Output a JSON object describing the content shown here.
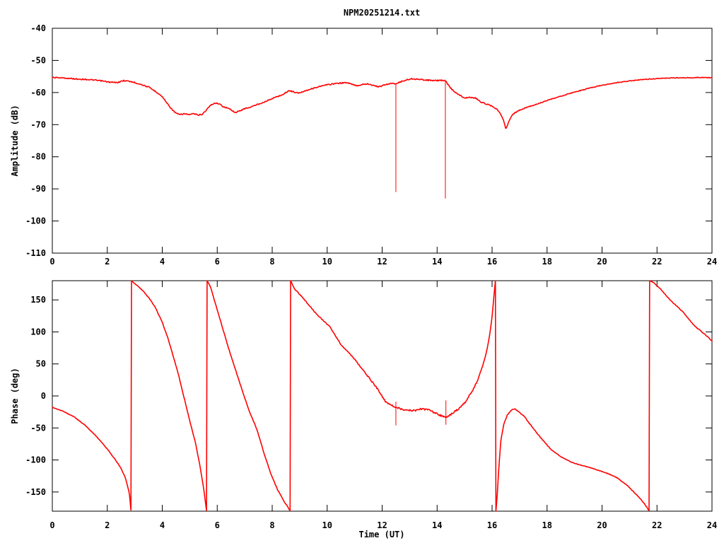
{
  "title": "NPM20251214.txt",
  "colors": {
    "trace": "#ff0000",
    "axis": "#000000",
    "background": "#ffffff"
  },
  "chart_data": [
    {
      "type": "line",
      "title": "NPM20251214.txt",
      "ylabel": "Amplitude (dB)",
      "xlabel": "",
      "xlim": [
        0,
        24
      ],
      "ylim": [
        -110,
        -40
      ],
      "grid": false,
      "legend": "none",
      "xticks": [
        0,
        2,
        4,
        6,
        8,
        10,
        12,
        14,
        16,
        18,
        20,
        22,
        24
      ],
      "xtick_labels": [
        "0",
        "2",
        "4",
        "6",
        "8",
        "10",
        "12",
        "14",
        "16",
        "18",
        "20",
        "22",
        "24"
      ],
      "yticks": [
        -110,
        -100,
        -90,
        -80,
        -70,
        -60,
        -50,
        -40
      ],
      "ytick_labels": [
        "-110",
        "-100",
        "-90",
        "-80",
        "-70",
        "-60",
        "-50",
        "-40"
      ],
      "series": [
        {
          "name": "amplitude",
          "color": "#ff0000",
          "points": [
            [
              0,
              -55.3
            ],
            [
              0.3,
              -55.4
            ],
            [
              0.6,
              -55.6
            ],
            [
              0.9,
              -55.8
            ],
            [
              1.2,
              -55.9
            ],
            [
              1.5,
              -56.1
            ],
            [
              1.8,
              -56.4
            ],
            [
              2.1,
              -56.8
            ],
            [
              2.35,
              -56.9
            ],
            [
              2.6,
              -56.3
            ],
            [
              2.8,
              -56.5
            ],
            [
              3.0,
              -56.9
            ],
            [
              3.2,
              -57.4
            ],
            [
              3.5,
              -58.3
            ],
            [
              3.8,
              -59.9
            ],
            [
              4.0,
              -61.3
            ],
            [
              4.2,
              -63.6
            ],
            [
              4.35,
              -65.2
            ],
            [
              4.5,
              -66.5
            ],
            [
              4.65,
              -66.9
            ],
            [
              4.8,
              -66.6
            ],
            [
              5.0,
              -66.9
            ],
            [
              5.15,
              -66.6
            ],
            [
              5.3,
              -67.0
            ],
            [
              5.45,
              -66.8
            ],
            [
              5.6,
              -65.5
            ],
            [
              5.75,
              -64.0
            ],
            [
              5.9,
              -63.3
            ],
            [
              6.05,
              -63.4
            ],
            [
              6.2,
              -64.3
            ],
            [
              6.35,
              -64.8
            ],
            [
              6.5,
              -65.3
            ],
            [
              6.65,
              -66.3
            ],
            [
              6.8,
              -65.8
            ],
            [
              7.0,
              -65.0
            ],
            [
              7.2,
              -64.6
            ],
            [
              7.4,
              -63.9
            ],
            [
              7.6,
              -63.3
            ],
            [
              7.8,
              -62.6
            ],
            [
              8.0,
              -61.9
            ],
            [
              8.2,
              -61.2
            ],
            [
              8.4,
              -60.6
            ],
            [
              8.6,
              -59.4
            ],
            [
              8.75,
              -59.7
            ],
            [
              8.95,
              -60.2
            ],
            [
              9.15,
              -59.6
            ],
            [
              9.4,
              -58.9
            ],
            [
              9.7,
              -58.2
            ],
            [
              10.0,
              -57.6
            ],
            [
              10.3,
              -57.2
            ],
            [
              10.55,
              -57.0
            ],
            [
              10.75,
              -57.0
            ],
            [
              10.95,
              -57.6
            ],
            [
              11.1,
              -57.9
            ],
            [
              11.3,
              -57.4
            ],
            [
              11.5,
              -57.3
            ],
            [
              11.7,
              -57.9
            ],
            [
              11.9,
              -58.2
            ],
            [
              12.1,
              -57.6
            ],
            [
              12.3,
              -57.2
            ],
            [
              12.5,
              -57.2
            ],
            [
              12.7,
              -56.6
            ],
            [
              12.9,
              -56.0
            ],
            [
              13.1,
              -55.7
            ],
            [
              13.3,
              -55.9
            ],
            [
              13.6,
              -56.1
            ],
            [
              13.9,
              -56.3
            ],
            [
              14.1,
              -56.2
            ],
            [
              14.3,
              -56.3
            ],
            [
              14.45,
              -58.2
            ],
            [
              14.6,
              -59.6
            ],
            [
              14.8,
              -60.7
            ],
            [
              15.0,
              -61.7
            ],
            [
              15.2,
              -61.5
            ],
            [
              15.4,
              -61.7
            ],
            [
              15.6,
              -63.0
            ],
            [
              15.8,
              -63.6
            ],
            [
              16.0,
              -64.2
            ],
            [
              16.15,
              -65.0
            ],
            [
              16.3,
              -66.5
            ],
            [
              16.42,
              -68.6
            ],
            [
              16.5,
              -71.4
            ],
            [
              16.58,
              -69.7
            ],
            [
              16.7,
              -67.3
            ],
            [
              16.85,
              -66.2
            ],
            [
              17.0,
              -65.5
            ],
            [
              17.2,
              -64.8
            ],
            [
              17.45,
              -64.1
            ],
            [
              17.7,
              -63.4
            ],
            [
              18.0,
              -62.5
            ],
            [
              18.3,
              -61.7
            ],
            [
              18.6,
              -60.9
            ],
            [
              18.9,
              -60.1
            ],
            [
              19.2,
              -59.4
            ],
            [
              19.5,
              -58.7
            ],
            [
              19.8,
              -58.1
            ],
            [
              20.1,
              -57.6
            ],
            [
              20.4,
              -57.1
            ],
            [
              20.8,
              -56.6
            ],
            [
              21.2,
              -56.2
            ],
            [
              21.6,
              -55.9
            ],
            [
              22.0,
              -55.7
            ],
            [
              22.4,
              -55.5
            ],
            [
              22.8,
              -55.4
            ],
            [
              23.2,
              -55.4
            ],
            [
              23.6,
              -55.3
            ],
            [
              24,
              -55.4
            ]
          ]
        }
      ],
      "spikes": [
        {
          "x": 12.5,
          "from": -57.2,
          "to": -91.0
        },
        {
          "x": 14.3,
          "from": -56.3,
          "to": -93.0
        }
      ]
    },
    {
      "type": "line",
      "title": "",
      "ylabel": "Phase (deg)",
      "xlabel": "Time (UT)",
      "xlim": [
        0,
        24
      ],
      "ylim": [
        -180,
        180
      ],
      "grid": false,
      "legend": "none",
      "xticks": [
        0,
        2,
        4,
        6,
        8,
        10,
        12,
        14,
        16,
        18,
        20,
        22,
        24
      ],
      "xtick_labels": [
        "0",
        "2",
        "4",
        "6",
        "8",
        "10",
        "12",
        "14",
        "16",
        "18",
        "20",
        "22",
        "24"
      ],
      "yticks": [
        -150,
        -100,
        -50,
        0,
        50,
        100,
        150
      ],
      "ytick_labels": [
        "-150",
        "-100",
        "-50",
        "0",
        "50",
        "100",
        "150"
      ],
      "series": [
        {
          "name": "phase",
          "color": "#ff0000",
          "points": [
            [
              0,
              -18
            ],
            [
              0.4,
              -24
            ],
            [
              0.8,
              -33
            ],
            [
              1.2,
              -46
            ],
            [
              1.6,
              -63
            ],
            [
              2.0,
              -83
            ],
            [
              2.3,
              -100
            ],
            [
              2.5,
              -113
            ],
            [
              2.65,
              -127
            ],
            [
              2.8,
              -151
            ],
            [
              2.86,
              -178
            ],
            [
              2.88,
              180
            ],
            [
              3.1,
              172
            ],
            [
              3.3,
              164
            ],
            [
              3.55,
              151
            ],
            [
              3.75,
              138
            ],
            [
              4.0,
              115
            ],
            [
              4.2,
              91
            ],
            [
              4.4,
              62
            ],
            [
              4.6,
              32
            ],
            [
              4.8,
              -4
            ],
            [
              5.0,
              -39
            ],
            [
              5.2,
              -72
            ],
            [
              5.35,
              -104
            ],
            [
              5.5,
              -143
            ],
            [
              5.61,
              -179
            ],
            [
              5.63,
              180
            ],
            [
              5.75,
              171
            ],
            [
              5.9,
              149
            ],
            [
              6.15,
              113
            ],
            [
              6.4,
              76
            ],
            [
              6.65,
              43
            ],
            [
              6.9,
              10
            ],
            [
              7.15,
              -22
            ],
            [
              7.45,
              -53
            ],
            [
              7.7,
              -89
            ],
            [
              7.95,
              -122
            ],
            [
              8.2,
              -147
            ],
            [
              8.45,
              -166
            ],
            [
              8.65,
              -179
            ],
            [
              8.67,
              180
            ],
            [
              8.8,
              168
            ],
            [
              9.2,
              149
            ],
            [
              9.65,
              126
            ],
            [
              10.1,
              108
            ],
            [
              10.5,
              80
            ],
            [
              10.95,
              60
            ],
            [
              11.4,
              35
            ],
            [
              11.8,
              13
            ],
            [
              12.15,
              -11
            ],
            [
              12.5,
              -18
            ],
            [
              12.8,
              -22
            ],
            [
              13.2,
              -23
            ],
            [
              13.45,
              -20
            ],
            [
              13.7,
              -22
            ],
            [
              14.0,
              -28
            ],
            [
              14.3,
              -34
            ],
            [
              14.5,
              -29
            ],
            [
              14.65,
              -24
            ],
            [
              14.8,
              -20
            ],
            [
              15.0,
              -11
            ],
            [
              15.15,
              -1
            ],
            [
              15.35,
              13
            ],
            [
              15.5,
              28
            ],
            [
              15.65,
              46
            ],
            [
              15.75,
              61
            ],
            [
              15.85,
              80
            ],
            [
              15.92,
              98
            ],
            [
              16.0,
              124
            ],
            [
              16.07,
              158
            ],
            [
              16.12,
              180
            ],
            [
              16.14,
              -180
            ],
            [
              16.18,
              -160
            ],
            [
              16.25,
              -110
            ],
            [
              16.32,
              -70
            ],
            [
              16.42,
              -45
            ],
            [
              16.55,
              -30
            ],
            [
              16.7,
              -22
            ],
            [
              16.82,
              -20
            ],
            [
              17.0,
              -26
            ],
            [
              17.15,
              -31
            ],
            [
              17.45,
              -48
            ],
            [
              17.8,
              -67
            ],
            [
              18.15,
              -84
            ],
            [
              18.5,
              -95
            ],
            [
              18.85,
              -103
            ],
            [
              19.2,
              -108
            ],
            [
              19.5,
              -111
            ],
            [
              19.85,
              -116
            ],
            [
              20.2,
              -121
            ],
            [
              20.55,
              -128
            ],
            [
              20.9,
              -139
            ],
            [
              21.2,
              -152
            ],
            [
              21.5,
              -166
            ],
            [
              21.71,
              -179
            ],
            [
              21.73,
              180
            ],
            [
              21.9,
              176
            ],
            [
              22.1,
              168
            ],
            [
              22.5,
              149
            ],
            [
              22.95,
              131
            ],
            [
              23.35,
              110
            ],
            [
              23.8,
              94
            ],
            [
              24,
              86
            ]
          ]
        }
      ],
      "spikes": [
        {
          "x": 12.5,
          "from": -9,
          "to": -46
        },
        {
          "x": 14.32,
          "from": -7,
          "to": -45
        }
      ]
    }
  ]
}
